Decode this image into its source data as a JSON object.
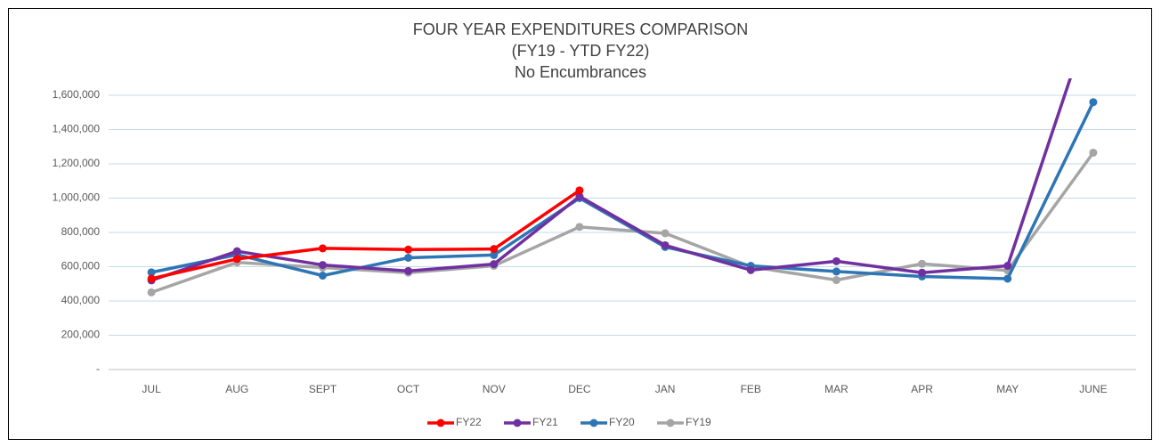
{
  "chart_data": {
    "type": "line",
    "title": "FOUR YEAR EXPENDITURES COMPARISON",
    "subtitle": [
      "(FY19 - YTD FY22)",
      "No Encumbrances"
    ],
    "categories": [
      "JUL",
      "AUG",
      "SEPT",
      "OCT",
      "NOV",
      "DEC",
      "JAN",
      "FEB",
      "MAR",
      "APR",
      "MAY",
      "JUNE"
    ],
    "series": [
      {
        "name": "FY22",
        "color": "#ff0000",
        "values": [
          530000,
          645000,
          707000,
          700000,
          703000,
          1045000,
          null,
          null,
          null,
          null,
          null,
          null
        ]
      },
      {
        "name": "FY21",
        "color": "#7030a0",
        "values": [
          520000,
          690000,
          610000,
          575000,
          615000,
          1010000,
          725000,
          580000,
          632000,
          565000,
          605000,
          2100000
        ]
      },
      {
        "name": "FY20",
        "color": "#2e75b6",
        "values": [
          567000,
          670000,
          548000,
          652000,
          668000,
          1000000,
          715000,
          605000,
          572000,
          543000,
          530000,
          1560000
        ]
      },
      {
        "name": "FY19",
        "color": "#a5a5a5",
        "values": [
          450000,
          625000,
          595000,
          565000,
          605000,
          832000,
          795000,
          600000,
          522000,
          617000,
          578000,
          1265000
        ]
      }
    ],
    "ylim": [
      0,
      1700000
    ],
    "yticks": [
      {
        "value": 0,
        "label": "-"
      },
      {
        "value": 200000,
        "label": "200,000"
      },
      {
        "value": 400000,
        "label": "400,000"
      },
      {
        "value": 600000,
        "label": "600,000"
      },
      {
        "value": 800000,
        "label": "800,000"
      },
      {
        "value": 1000000,
        "label": "1,000,000"
      },
      {
        "value": 1200000,
        "label": "1,200,000"
      },
      {
        "value": 1400000,
        "label": "1,400,000"
      },
      {
        "value": 1600000,
        "label": "1,600,000"
      }
    ],
    "grid": true,
    "legend": "bottom"
  }
}
